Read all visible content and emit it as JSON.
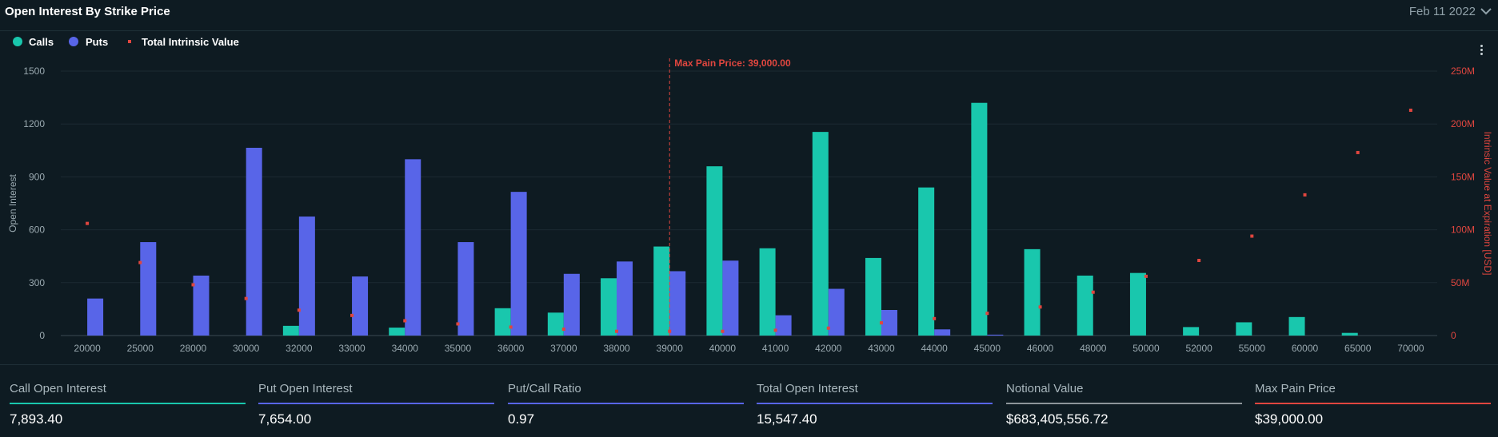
{
  "header": {
    "title": "Open Interest By Strike Price",
    "date": "Feb 11 2022"
  },
  "colors": {
    "calls": "#19c7ad",
    "puts": "#5865e8",
    "intrinsic": "#e0463f",
    "maxpain": "#e0463f",
    "grid": "#1c2b33",
    "axis_text": "#9aa9b0"
  },
  "chart_data": {
    "type": "bar",
    "title": "",
    "xlabel": "",
    "ylabel": "Open Interest",
    "y2label": "Intrinsic Value at Expiration [USD]",
    "ylim": [
      0,
      1500
    ],
    "y2lim": [
      0,
      250000000
    ],
    "yticks": [
      "0",
      "300",
      "600",
      "900",
      "1200",
      "1500"
    ],
    "y2ticks": [
      "0",
      "50M",
      "100M",
      "150M",
      "200M",
      "250M"
    ],
    "legend": [
      "Calls",
      "Puts",
      "Total Intrinsic Value"
    ],
    "legend_position": "top-left",
    "categories": [
      "20000",
      "25000",
      "28000",
      "30000",
      "32000",
      "33000",
      "34000",
      "35000",
      "36000",
      "37000",
      "38000",
      "39000",
      "40000",
      "41000",
      "42000",
      "43000",
      "44000",
      "45000",
      "46000",
      "48000",
      "50000",
      "52000",
      "55000",
      "60000",
      "65000",
      "70000"
    ],
    "series": [
      {
        "name": "Calls",
        "type": "bar",
        "axis": "left",
        "values": [
          0,
          0,
          0,
          0,
          55,
          0,
          45,
          0,
          155,
          130,
          325,
          505,
          960,
          495,
          1155,
          440,
          840,
          1320,
          490,
          340,
          355,
          48,
          75,
          105,
          15,
          0
        ]
      },
      {
        "name": "Puts",
        "type": "bar",
        "axis": "left",
        "values": [
          210,
          530,
          340,
          1065,
          675,
          335,
          1000,
          530,
          815,
          350,
          420,
          365,
          425,
          115,
          265,
          145,
          35,
          5,
          0,
          0,
          0,
          0,
          0,
          0,
          0,
          0
        ]
      },
      {
        "name": "Total Intrinsic Value",
        "type": "scatter",
        "axis": "right",
        "values": [
          106000000,
          69000000,
          48000000,
          35000000,
          24000000,
          19000000,
          14000000,
          11000000,
          8000000,
          6000000,
          4000000,
          4000000,
          4000000,
          5000000,
          7000000,
          12000000,
          16000000,
          21000000,
          27000000,
          41000000,
          56000000,
          71000000,
          94000000,
          133000000,
          173000000,
          213000000
        ]
      }
    ],
    "annotation": {
      "label": "Max Pain Price: 39,000.00",
      "category": "39000"
    }
  },
  "stats": [
    {
      "label": "Call Open Interest",
      "value": "7,893.40",
      "color": "#19c7ad"
    },
    {
      "label": "Put Open Interest",
      "value": "7,654.00",
      "color": "#5865e8"
    },
    {
      "label": "Put/Call Ratio",
      "value": "0.97",
      "color": "#5865e8"
    },
    {
      "label": "Total Open Interest",
      "value": "15,547.40",
      "color": "#5865e8"
    },
    {
      "label": "Notional Value",
      "value": "$683,405,556.72",
      "color": "#8d959a"
    },
    {
      "label": "Max Pain Price",
      "value": "$39,000.00",
      "color": "#e0463f"
    }
  ]
}
